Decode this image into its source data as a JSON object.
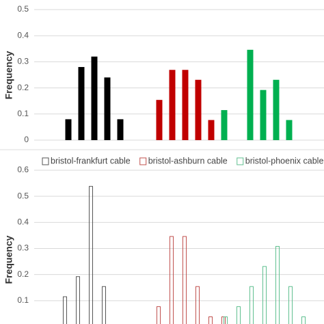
{
  "chart_data": [
    {
      "type": "bar",
      "y_label": "Frequency",
      "grid": true,
      "bar_style": "filled",
      "categories": [
        null,
        null,
        null,
        null,
        null,
        null,
        null,
        null,
        null,
        null,
        null,
        null,
        null,
        null,
        null,
        null,
        null,
        null
      ],
      "ylim": [
        0,
        0.5
      ],
      "yticks": [
        0,
        0.1,
        0.2,
        0.3,
        0.4,
        0.5
      ],
      "series": [
        {
          "color": "#000000",
          "values": [
            0.08,
            0.28,
            0.32,
            0.24,
            0.08,
            null,
            null,
            null,
            null,
            null,
            null,
            null,
            null,
            null,
            null,
            null,
            null,
            null
          ]
        },
        {
          "color": "#c00000",
          "values": [
            null,
            null,
            null,
            null,
            null,
            null,
            null,
            0.154,
            0.269,
            0.269,
            0.231,
            0.077,
            null,
            null,
            null,
            null,
            null,
            null
          ]
        },
        {
          "color": "#00b050",
          "values": [
            null,
            null,
            null,
            null,
            null,
            null,
            null,
            null,
            null,
            null,
            null,
            null,
            0.115,
            null,
            0.346,
            0.192,
            0.231,
            0.077
          ]
        }
      ]
    },
    {
      "type": "bar",
      "y_label": "Frequency",
      "grid": true,
      "bar_style": "outline",
      "legend": "top",
      "categories": [
        null,
        null,
        null,
        null,
        null,
        null,
        null,
        null,
        null,
        null,
        null,
        null,
        null,
        null,
        null,
        null,
        null,
        null,
        null
      ],
      "ylim": [
        0,
        0.6
      ],
      "yticks": [
        0.1,
        0.2,
        0.3,
        0.4,
        0.5,
        0.6
      ],
      "series": [
        {
          "name": "bristol-frankfurt cable",
          "color": "#555555",
          "values": [
            0.115,
            0.192,
            0.538,
            0.154,
            null,
            null,
            null,
            null,
            null,
            null,
            null,
            null,
            null,
            null,
            null,
            null,
            null,
            null,
            null
          ]
        },
        {
          "name": "bristol-ashburn cable",
          "color": "#c0504d",
          "values": [
            null,
            null,
            null,
            null,
            null,
            null,
            null,
            0.077,
            0.346,
            0.346,
            0.154,
            0.038,
            0.038,
            null,
            null,
            null,
            null,
            null,
            null
          ]
        },
        {
          "name": "bristol-phoenix cable",
          "color": "#5fbf8f",
          "values": [
            null,
            null,
            null,
            null,
            null,
            null,
            null,
            null,
            null,
            null,
            null,
            null,
            0.038,
            0.077,
            0.154,
            0.231,
            0.308,
            0.154,
            0.038
          ]
        }
      ]
    }
  ]
}
